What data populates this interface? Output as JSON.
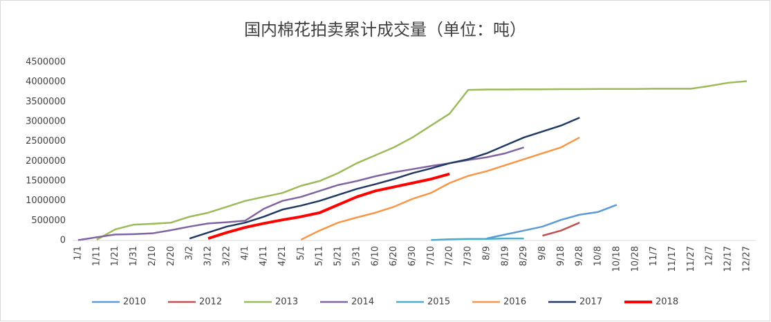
{
  "chart_data": {
    "type": "line",
    "title": "国内棉花拍卖累计成交量（单位：吨）",
    "categories": [
      "1/1",
      "1/11",
      "1/21",
      "1/31",
      "2/10",
      "2/20",
      "3/2",
      "3/12",
      "3/22",
      "4/1",
      "4/11",
      "4/21",
      "5/1",
      "5/11",
      "5/21",
      "5/31",
      "6/10",
      "6/20",
      "6/30",
      "7/10",
      "7/20",
      "7/30",
      "8/9",
      "8/19",
      "8/29",
      "9/8",
      "9/18",
      "9/28",
      "10/8",
      "10/18",
      "10/28",
      "11/7",
      "11/17",
      "11/27",
      "12/7",
      "12/17",
      "12/27"
    ],
    "series": [
      {
        "name": "2010",
        "color": "#5b9bd5",
        "values": [
          null,
          null,
          null,
          null,
          null,
          null,
          null,
          null,
          null,
          null,
          null,
          null,
          null,
          null,
          null,
          null,
          null,
          null,
          null,
          null,
          null,
          null,
          50000,
          150000,
          250000,
          350000,
          520000,
          650000,
          720000,
          900000,
          null,
          null,
          null,
          null,
          null,
          null,
          null
        ]
      },
      {
        "name": "2012",
        "color": "#c0504d",
        "values": [
          null,
          null,
          null,
          null,
          null,
          null,
          null,
          null,
          null,
          null,
          null,
          null,
          null,
          null,
          null,
          null,
          null,
          null,
          null,
          null,
          null,
          null,
          null,
          null,
          null,
          120000,
          250000,
          450000,
          null,
          null,
          null,
          null,
          null,
          null,
          null,
          null,
          null
        ]
      },
      {
        "name": "2013",
        "color": "#9bbb59",
        "values": [
          null,
          20000,
          280000,
          400000,
          420000,
          450000,
          600000,
          700000,
          850000,
          1000000,
          1100000,
          1200000,
          1380000,
          1500000,
          1700000,
          1950000,
          2150000,
          2350000,
          2600000,
          2900000,
          3200000,
          3800000,
          3810000,
          3810000,
          3815000,
          3815000,
          3820000,
          3820000,
          3825000,
          3825000,
          3825000,
          3830000,
          3830000,
          3830000,
          3900000,
          3980000,
          4020000
        ]
      },
      {
        "name": "2014",
        "color": "#8064a2",
        "values": [
          10000,
          80000,
          150000,
          160000,
          180000,
          260000,
          350000,
          430000,
          460000,
          500000,
          800000,
          1000000,
          1100000,
          1250000,
          1400000,
          1500000,
          1620000,
          1720000,
          1800000,
          1880000,
          1950000,
          2030000,
          2100000,
          2200000,
          2350000,
          null,
          null,
          null,
          null,
          null,
          null,
          null,
          null,
          null,
          null,
          null,
          null
        ]
      },
      {
        "name": "2015",
        "color": "#4bacc6",
        "values": [
          null,
          null,
          null,
          null,
          null,
          null,
          null,
          null,
          null,
          null,
          null,
          null,
          null,
          null,
          null,
          null,
          null,
          null,
          null,
          10000,
          30000,
          40000,
          40000,
          50000,
          50000,
          null,
          null,
          null,
          null,
          null,
          null,
          null,
          null,
          null,
          null,
          null,
          null
        ]
      },
      {
        "name": "2016",
        "color": "#f79646",
        "values": [
          null,
          null,
          null,
          null,
          null,
          null,
          null,
          null,
          null,
          null,
          null,
          null,
          20000,
          250000,
          450000,
          580000,
          700000,
          850000,
          1050000,
          1200000,
          1450000,
          1630000,
          1750000,
          1900000,
          2050000,
          2200000,
          2350000,
          2600000,
          null,
          null,
          null,
          null,
          null,
          null,
          null,
          null,
          null
        ]
      },
      {
        "name": "2017",
        "color": "#1f3864",
        "values": [
          null,
          null,
          null,
          null,
          null,
          null,
          50000,
          200000,
          350000,
          450000,
          600000,
          780000,
          880000,
          1000000,
          1150000,
          1300000,
          1420000,
          1550000,
          1700000,
          1820000,
          1950000,
          2050000,
          2200000,
          2400000,
          2600000,
          2750000,
          2900000,
          3100000,
          null,
          null,
          null,
          null,
          null,
          null,
          null,
          null,
          null
        ]
      },
      {
        "name": "2018",
        "color": "#ff0000",
        "values": [
          null,
          null,
          null,
          null,
          null,
          null,
          null,
          50000,
          200000,
          330000,
          430000,
          520000,
          600000,
          700000,
          900000,
          1100000,
          1250000,
          1350000,
          1450000,
          1550000,
          1680000,
          null,
          null,
          null,
          null,
          null,
          null,
          null,
          null,
          null,
          null,
          null,
          null,
          null,
          null,
          null,
          null
        ]
      }
    ],
    "ylim": [
      0,
      4500000
    ],
    "yticks": [
      0,
      500000,
      1000000,
      1500000,
      2000000,
      2500000,
      3000000,
      3500000,
      4000000,
      4500000
    ],
    "grid": false,
    "legend": "bottom"
  }
}
